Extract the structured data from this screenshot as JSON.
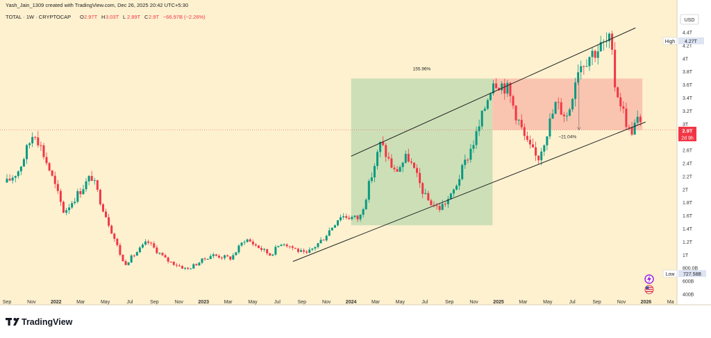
{
  "header": {
    "credit": "Yash_Jain_1309 created with TradingView.com, Dec 26, 2025 20:42 UTC+5:30",
    "symbol": "TOTAL · 1W · CRYPTOCAP",
    "ohlc": [
      {
        "k": "O",
        "v": "2.97T"
      },
      {
        "k": "H",
        "v": "3.03T"
      },
      {
        "k": "L",
        "v": "2.89T"
      },
      {
        "k": "C",
        "v": "2.9T"
      }
    ],
    "change": "−66.97B (−2.26%)"
  },
  "currency": "USD",
  "price_scale": {
    "ticks": [
      "4.4T",
      "4.2T",
      "4T",
      "3.8T",
      "3.6T",
      "3.4T",
      "3.2T",
      "3T",
      "2.8T",
      "2.6T",
      "2.4T",
      "2.2T",
      "2T",
      "1.8T",
      "1.6T",
      "1.4T",
      "1.2T",
      "1T",
      "800.0B",
      "600B",
      "400B"
    ],
    "high_label": "High",
    "high_value": "4.27T",
    "low_label": "Low",
    "low_value": "727.58B",
    "last_price": "2.9T",
    "countdown": "2d 9h"
  },
  "time_axis": [
    "Sep",
    "Nov",
    "2022",
    "Mar",
    "May",
    "Jul",
    "Sep",
    "Nov",
    "2023",
    "Mar",
    "May",
    "Jul",
    "Sep",
    "Nov",
    "2024",
    "Mar",
    "May",
    "Jul",
    "Sep",
    "Nov",
    "2025",
    "Mar",
    "May",
    "Jul",
    "Sep",
    "Nov",
    "2026",
    "Ma"
  ],
  "annotations": {
    "gain_label": "155.96%",
    "loss_label": "−21.04%"
  },
  "branding": "TradingView",
  "colors": {
    "background": "#fdf1d0",
    "up": "#089981",
    "down": "#f23645",
    "gain_box": "#c8ddb4",
    "loss_box": "#f9c0ac",
    "trend_line": "#222222"
  },
  "chart_data": {
    "type": "candlestick",
    "title": "TOTAL · 1W · CRYPTOCAP",
    "x_range": [
      "2021-09",
      "2026-03"
    ],
    "y_unit": "USD (trillions)",
    "ylim": [
      0.4,
      4.5
    ],
    "grid": false,
    "series": [
      {
        "name": "TOTAL",
        "close_path": [
          {
            "date": "2021-09-01",
            "value": 2.1
          },
          {
            "date": "2021-10-01",
            "value": 2.3
          },
          {
            "date": "2021-11-08",
            "value": 2.9
          },
          {
            "date": "2021-12-15",
            "value": 2.3
          },
          {
            "date": "2022-01-20",
            "value": 1.65
          },
          {
            "date": "2022-03-29",
            "value": 2.2
          },
          {
            "date": "2022-05-10",
            "value": 1.5
          },
          {
            "date": "2022-06-18",
            "value": 0.85
          },
          {
            "date": "2022-08-15",
            "value": 1.2
          },
          {
            "date": "2022-10-01",
            "value": 0.92
          },
          {
            "date": "2022-11-21",
            "value": 0.78
          },
          {
            "date": "2023-01-20",
            "value": 1.0
          },
          {
            "date": "2023-03-10",
            "value": 0.95
          },
          {
            "date": "2023-04-14",
            "value": 1.25
          },
          {
            "date": "2023-06-15",
            "value": 1.0
          },
          {
            "date": "2023-07-14",
            "value": 1.2
          },
          {
            "date": "2023-09-11",
            "value": 1.0
          },
          {
            "date": "2023-10-24",
            "value": 1.25
          },
          {
            "date": "2023-12-05",
            "value": 1.6
          },
          {
            "date": "2024-01-22",
            "value": 1.55
          },
          {
            "date": "2024-03-14",
            "value": 2.7
          },
          {
            "date": "2024-04-18",
            "value": 2.25
          },
          {
            "date": "2024-05-20",
            "value": 2.5
          },
          {
            "date": "2024-07-05",
            "value": 1.85
          },
          {
            "date": "2024-08-05",
            "value": 1.7
          },
          {
            "date": "2024-09-06",
            "value": 1.9
          },
          {
            "date": "2024-11-11",
            "value": 2.9
          },
          {
            "date": "2024-12-17",
            "value": 3.68
          },
          {
            "date": "2025-01-20",
            "value": 3.55
          },
          {
            "date": "2025-03-10",
            "value": 2.7
          },
          {
            "date": "2025-04-07",
            "value": 2.45
          },
          {
            "date": "2025-05-22",
            "value": 3.3
          },
          {
            "date": "2025-06-20",
            "value": 3.1
          },
          {
            "date": "2025-07-14",
            "value": 3.85
          },
          {
            "date": "2025-08-14",
            "value": 4.05
          },
          {
            "date": "2025-10-06",
            "value": 4.27
          },
          {
            "date": "2025-10-10",
            "value": 3.7
          },
          {
            "date": "2025-11-21",
            "value": 2.85
          },
          {
            "date": "2025-12-10",
            "value": 3.05
          },
          {
            "date": "2025-12-22",
            "value": 2.9
          }
        ]
      }
    ],
    "last": {
      "open": 2.97,
      "high": 3.03,
      "low": 2.89,
      "close": 2.9
    },
    "high": 4.27,
    "low": 0.72758,
    "ranges": [
      {
        "from": "2024-01-01",
        "to": "2024-12-16",
        "low": 1.45,
        "high": 3.68,
        "label": "155.96%"
      },
      {
        "from": "2024-12-16",
        "to": "2025-12-22",
        "low": 2.9,
        "high": 3.68,
        "label": "−21.04%"
      }
    ],
    "trend_lines": [
      {
        "from": {
          "date": "2023-08-10",
          "value": 0.9
        },
        "to": {
          "date": "2025-12-30",
          "value": 3.02
        }
      },
      {
        "from": {
          "date": "2024-01-01",
          "value": 2.5
        },
        "to": {
          "date": "2025-12-05",
          "value": 4.45
        }
      }
    ]
  }
}
